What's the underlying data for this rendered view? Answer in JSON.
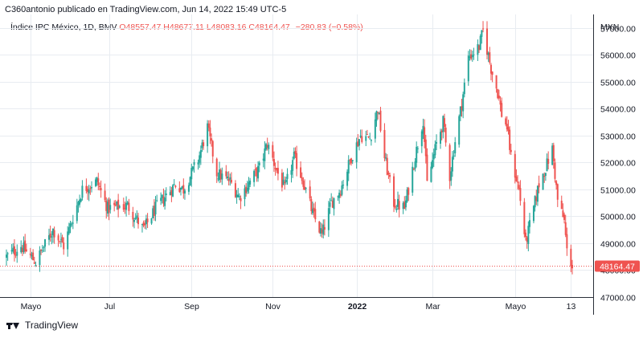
{
  "header": {
    "title": "C360antonio publicado en TradingView.com, Jun 14, 2022 15:49 UTC-5"
  },
  "legend": {
    "symbol": "Índice IPC México, 1D, BMV",
    "open_label": "O",
    "open": "48557.47",
    "high_label": "H",
    "high": "48677.11",
    "low_label": "L",
    "low": "48083.16",
    "close_label": "C",
    "close": "48164.47",
    "change": "−280.83 (−0.58%)"
  },
  "footer": {
    "brand": "TradingView"
  },
  "colors": {
    "up": "#26a69a",
    "down": "#ef5350",
    "grid": "#e8ecf1",
    "text": "#131722"
  },
  "chart_data": {
    "type": "candlestick",
    "currency": "MXN",
    "last_price": 48164.47,
    "last_price_label": "48164.47",
    "ylim": [
      47000,
      57500
    ],
    "y_ticks": [
      {
        "value": 47000,
        "label": "47000.00"
      },
      {
        "value": 48000,
        "label": "48000.00"
      },
      {
        "value": 49000,
        "label": "49000.00"
      },
      {
        "value": 50000,
        "label": "50000.00"
      },
      {
        "value": 51000,
        "label": "51000.00"
      },
      {
        "value": 52000,
        "label": "52000.00"
      },
      {
        "value": 53000,
        "label": "53000.00"
      },
      {
        "value": 54000,
        "label": "54000.00"
      },
      {
        "value": 55000,
        "label": "55000.00"
      },
      {
        "value": 56000,
        "label": "56000.00"
      },
      {
        "value": 57000,
        "label": "57000.00"
      }
    ],
    "x_ticks": [
      {
        "date": "2021-05-03",
        "label": "Mayo",
        "bold": false
      },
      {
        "date": "2021-07-01",
        "label": "Jul",
        "bold": false
      },
      {
        "date": "2021-09-01",
        "label": "Sep",
        "bold": false
      },
      {
        "date": "2021-11-01",
        "label": "Nov",
        "bold": false
      },
      {
        "date": "2022-01-03",
        "label": "2022",
        "bold": true
      },
      {
        "date": "2022-03-01",
        "label": "Mar",
        "bold": false
      },
      {
        "date": "2022-05-02",
        "label": "Mayo",
        "bold": false
      },
      {
        "date": "2022-06-13",
        "label": "13",
        "bold": false
      }
    ],
    "x_range": [
      "2021-04-15",
      "2022-06-14"
    ],
    "close_path": [
      {
        "date": "2021-04-15",
        "close": 48500
      },
      {
        "date": "2021-04-26",
        "close": 48900
      },
      {
        "date": "2021-05-07",
        "close": 48300
      },
      {
        "date": "2021-05-20",
        "close": 49500
      },
      {
        "date": "2021-05-28",
        "close": 48900
      },
      {
        "date": "2021-06-11",
        "close": 51000
      },
      {
        "date": "2021-06-22",
        "close": 51300
      },
      {
        "date": "2021-06-30",
        "close": 50300
      },
      {
        "date": "2021-07-15",
        "close": 50400
      },
      {
        "date": "2021-07-27",
        "close": 49500
      },
      {
        "date": "2021-08-05",
        "close": 50300
      },
      {
        "date": "2021-08-20",
        "close": 51200
      },
      {
        "date": "2021-08-26",
        "close": 51000
      },
      {
        "date": "2021-09-06",
        "close": 52100
      },
      {
        "date": "2021-09-13",
        "close": 53300
      },
      {
        "date": "2021-09-20",
        "close": 51600
      },
      {
        "date": "2021-09-30",
        "close": 51300
      },
      {
        "date": "2021-10-07",
        "close": 50700
      },
      {
        "date": "2021-10-15",
        "close": 51300
      },
      {
        "date": "2021-10-22",
        "close": 51800
      },
      {
        "date": "2021-10-28",
        "close": 52700
      },
      {
        "date": "2021-11-04",
        "close": 51700
      },
      {
        "date": "2021-11-10",
        "close": 51000
      },
      {
        "date": "2021-11-17",
        "close": 52200
      },
      {
        "date": "2021-11-24",
        "close": 51300
      },
      {
        "date": "2021-12-01",
        "close": 50100
      },
      {
        "date": "2021-12-08",
        "close": 49300
      },
      {
        "date": "2021-12-15",
        "close": 50500
      },
      {
        "date": "2021-12-22",
        "close": 51000
      },
      {
        "date": "2021-12-30",
        "close": 52200
      },
      {
        "date": "2022-01-06",
        "close": 53000
      },
      {
        "date": "2022-01-13",
        "close": 52900
      },
      {
        "date": "2022-01-19",
        "close": 54000
      },
      {
        "date": "2022-01-24",
        "close": 52200
      },
      {
        "date": "2022-01-31",
        "close": 50500
      },
      {
        "date": "2022-02-08",
        "close": 50300
      },
      {
        "date": "2022-02-15",
        "close": 52000
      },
      {
        "date": "2022-02-22",
        "close": 53600
      },
      {
        "date": "2022-02-25",
        "close": 51200
      },
      {
        "date": "2022-03-04",
        "close": 52700
      },
      {
        "date": "2022-03-09",
        "close": 53500
      },
      {
        "date": "2022-03-14",
        "close": 51500
      },
      {
        "date": "2022-03-18",
        "close": 52800
      },
      {
        "date": "2022-03-23",
        "close": 54200
      },
      {
        "date": "2022-03-28",
        "close": 55900
      },
      {
        "date": "2022-04-05",
        "close": 56300
      },
      {
        "date": "2022-04-08",
        "close": 56900
      },
      {
        "date": "2022-04-14",
        "close": 55500
      },
      {
        "date": "2022-04-19",
        "close": 54600
      },
      {
        "date": "2022-04-22",
        "close": 53800
      },
      {
        "date": "2022-04-26",
        "close": 53300
      },
      {
        "date": "2022-04-29",
        "close": 52200
      },
      {
        "date": "2022-05-05",
        "close": 51000
      },
      {
        "date": "2022-05-10",
        "close": 49000
      },
      {
        "date": "2022-05-16",
        "close": 50300
      },
      {
        "date": "2022-05-20",
        "close": 51200
      },
      {
        "date": "2022-05-25",
        "close": 51800
      },
      {
        "date": "2022-05-30",
        "close": 52500
      },
      {
        "date": "2022-06-03",
        "close": 50600
      },
      {
        "date": "2022-06-08",
        "close": 49800
      },
      {
        "date": "2022-06-10",
        "close": 48700
      },
      {
        "date": "2022-06-14",
        "close": 48164
      }
    ]
  }
}
